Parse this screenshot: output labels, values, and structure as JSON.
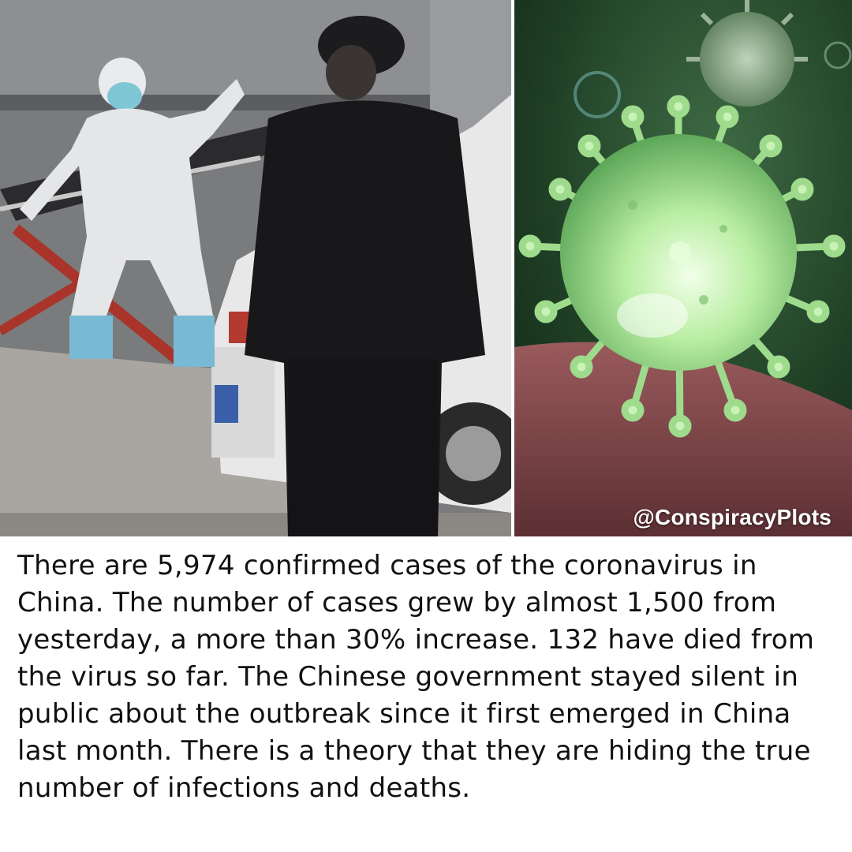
{
  "watermark": "@ConspiracyPlots",
  "caption": "There are 5,974 confirmed cases of the coronavirus in China. The number of cases grew by almost 1,500 from yesterday, a more than 30% increase. 132 have died from the virus so far. The Chinese government stayed silent in public about the outbreak since it first emerged in China last month. There is a theory that they are hiding the true number of infections and deaths.",
  "images": {
    "left": "photo-medical-workers-stretcher",
    "right": "illustration-coronavirus-particle"
  },
  "colors": {
    "virus": "#9fdc8a",
    "background_right": "#1d3a22",
    "caption_text": "#111111"
  }
}
